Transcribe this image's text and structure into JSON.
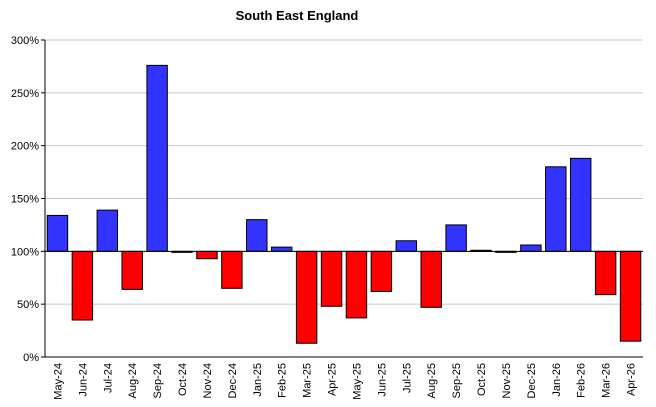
{
  "chart_data": {
    "type": "bar",
    "title": "South East England",
    "xlabel": "",
    "ylabel": "",
    "baseline": 100,
    "ylim": [
      0,
      300
    ],
    "yticks": [
      0,
      50,
      100,
      150,
      200,
      250,
      300
    ],
    "ytick_format": "{v}%",
    "grid": true,
    "categories": [
      "May-24",
      "Jun-24",
      "Jul-24",
      "Aug-24",
      "Sep-24",
      "Oct-24",
      "Nov-24",
      "Dec-24",
      "Jan-25",
      "Feb-25",
      "Mar-25",
      "Apr-25",
      "May-25",
      "Jun-25",
      "Jul-25",
      "Aug-25",
      "Sep-25",
      "Oct-25",
      "Nov-25",
      "Dec-25",
      "Jan-26",
      "Feb-26",
      "Mar-26",
      "Apr-26"
    ],
    "values": [
      134,
      35,
      139,
      64,
      276,
      99,
      93,
      65,
      130,
      104,
      13,
      48,
      37,
      62,
      110,
      47,
      125,
      101,
      99,
      106,
      180,
      188,
      59,
      15
    ],
    "colors": {
      "above": "#3333ff",
      "below": "#ff0000",
      "edge": "#000000",
      "grid": "#c8c8c8"
    }
  }
}
